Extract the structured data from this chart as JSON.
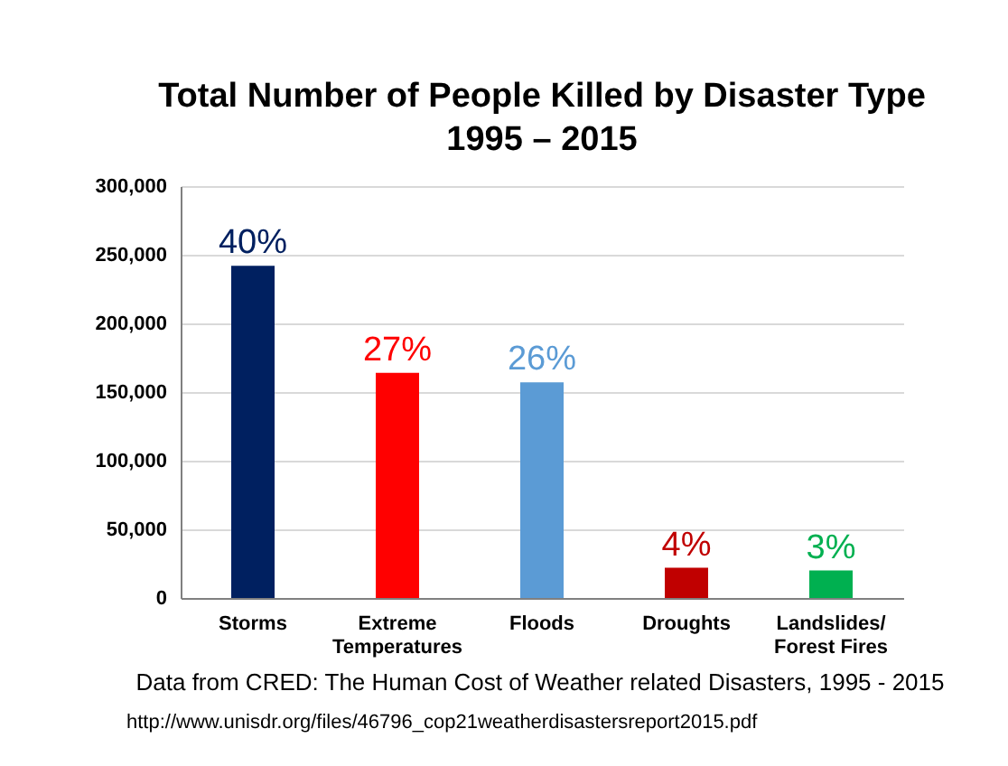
{
  "chart_data": {
    "type": "bar",
    "title": "Total Number of People Killed by Disaster Type\n1995 – 2015",
    "categories": [
      "Storms",
      "Extreme Temperatures",
      "Floods",
      "Droughts",
      "Landslides/ Forest Fires"
    ],
    "values": [
      242000,
      164000,
      157000,
      22000,
      20000
    ],
    "colors": [
      "#002060",
      "#ff0000",
      "#5b9bd5",
      "#c00000",
      "#00b050"
    ],
    "ylim": [
      0,
      300000
    ],
    "yticks": [
      0,
      {
        "value": 50000,
        "label": "50,000"
      },
      {
        "value": 100000,
        "label": "100,000"
      },
      {
        "value": 150000,
        "label": "150,000"
      },
      {
        "value": 200000,
        "label": "200,000"
      },
      {
        "value": 250000,
        "label": "250,000"
      },
      {
        "value": 300000,
        "label": "300,000"
      }
    ],
    "grid": "y",
    "annotations": [
      {
        "text": "40%",
        "x": "Storms",
        "y": 242000
      },
      {
        "text": "27%",
        "x": "Extreme Temperatures",
        "y": 164000
      },
      {
        "text": "26%",
        "x": "Floods",
        "y": 157000
      },
      {
        "text": "4%",
        "x": "Droughts",
        "y": 22000
      },
      {
        "text": "3%",
        "x": "Landslides/ Forest Fires",
        "y": 20000
      },
      "Data from CRED: The Human Cost of Weather related Disasters, 1995 - 2015",
      "http://www.unisdr.org/files/46796_cop21weatherdisastersreport2015.pdf"
    ]
  }
}
